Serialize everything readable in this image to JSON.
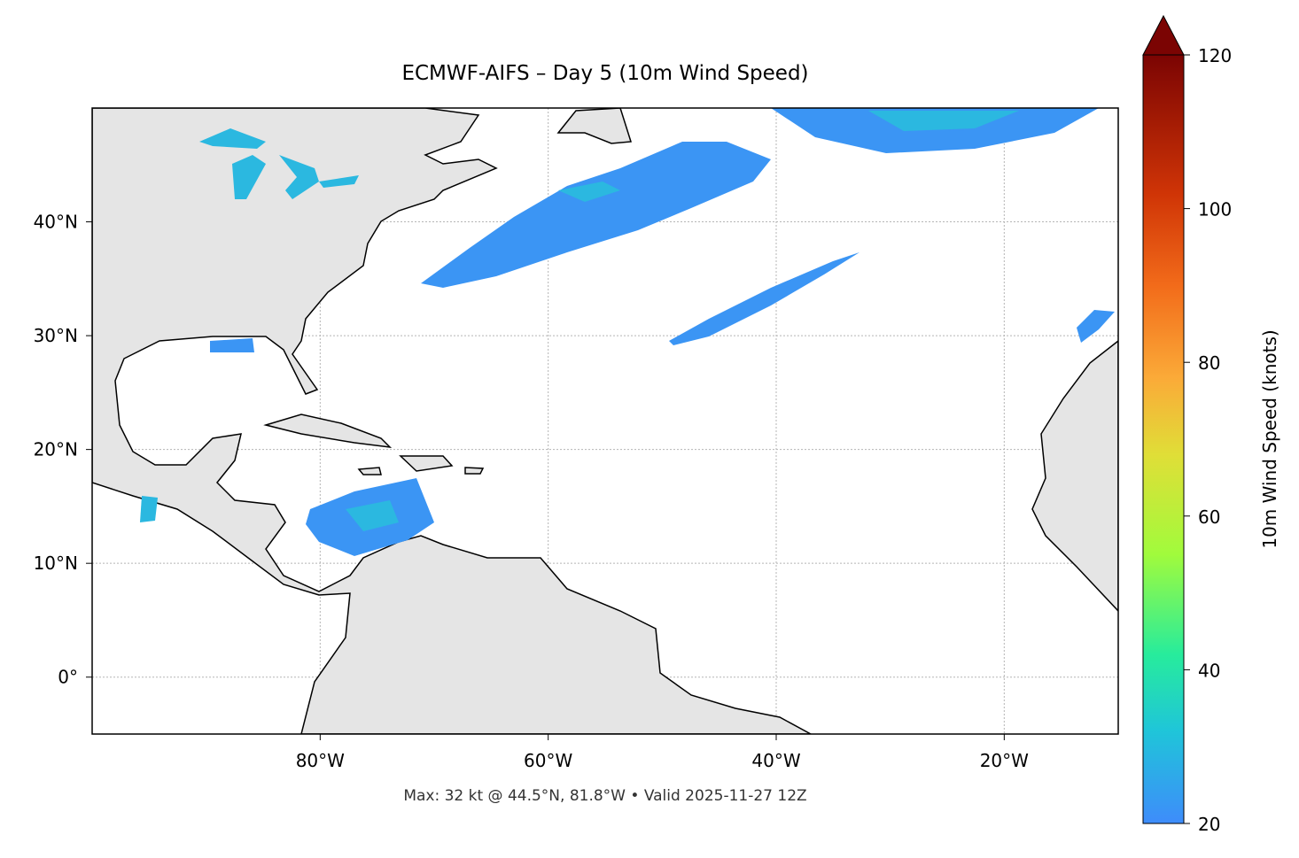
{
  "title": "ECMWF-AIFS – Day 5 (10m Wind Speed)",
  "map": {
    "xlim": [
      -100,
      -10
    ],
    "ylim": [
      -5,
      50
    ],
    "xticks": [
      {
        "value": -80,
        "label": "80°W"
      },
      {
        "value": -60,
        "label": "60°W"
      },
      {
        "value": -40,
        "label": "40°W"
      },
      {
        "value": -20,
        "label": "20°W"
      }
    ],
    "yticks": [
      {
        "value": 0,
        "label": "0°"
      },
      {
        "value": 10,
        "label": "10°N"
      },
      {
        "value": 20,
        "label": "20°N"
      },
      {
        "value": 30,
        "label": "30°N"
      },
      {
        "value": 40,
        "label": "40°N"
      }
    ],
    "grid": true
  },
  "colorbar": {
    "label": "10m Wind Speed (knots)",
    "lim": [
      20,
      120
    ],
    "ticks": [
      20,
      40,
      60,
      80,
      100,
      120
    ]
  },
  "footer": "Max: 32 kt @ 44.5°N, 81.8°W • Valid 2025-11-27 12Z"
}
